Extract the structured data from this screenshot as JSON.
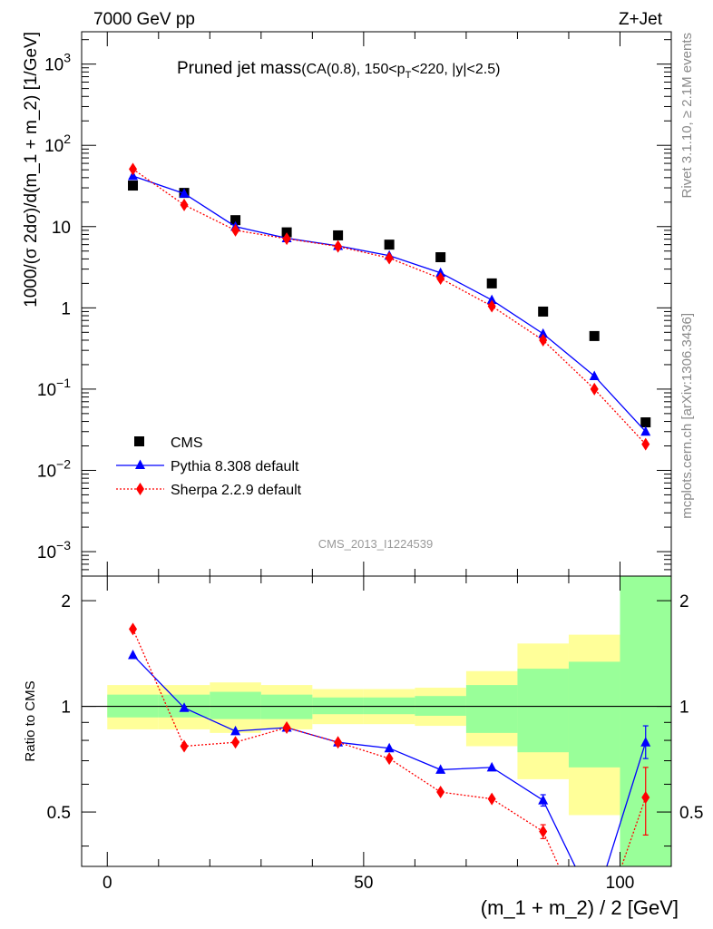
{
  "header": {
    "left": "7000 GeV pp",
    "right": "Z+Jet"
  },
  "side_labels": {
    "rivet": "Rivet 3.1.10, ≥ 2.1M events",
    "mcplots": "mcplots.cern.ch [arXiv:1306.3436]"
  },
  "watermark": "CMS_2013_I1224539",
  "chart_data": [
    {
      "type": "scatter",
      "title_main": "Pruned jet mass",
      "title_cuts_prefix": "(CA(0.8), 150<p",
      "title_cuts_sub": "T",
      "title_cuts_suffix": "<220, |y|<2.5)",
      "ylabel": "1000/(σ 2dσ)/d(m_1 + m_2) [1/GeV]",
      "yscale": "log",
      "ylim": [
        0.0005,
        2500
      ],
      "xlim": [
        -5,
        110
      ],
      "yticks": [
        {
          "base": "10",
          "exp": "−3",
          "value": 0.001
        },
        {
          "base": "10",
          "exp": "−2",
          "value": 0.01
        },
        {
          "base": "10",
          "exp": "−1",
          "value": 0.1
        },
        {
          "base": "1",
          "exp": "",
          "value": 1
        },
        {
          "base": "10",
          "exp": "",
          "value": 10
        },
        {
          "base": "10",
          "exp": "2",
          "value": 100
        },
        {
          "base": "10",
          "exp": "3",
          "value": 1000
        }
      ],
      "legend_position": "bottom-left",
      "x": [
        5,
        15,
        25,
        35,
        45,
        55,
        65,
        75,
        85,
        95,
        105
      ],
      "series": [
        {
          "name": "CMS",
          "color": "#000000",
          "marker": "square",
          "line": "none",
          "values": [
            32,
            26,
            12,
            8.5,
            7.8,
            6.0,
            4.2,
            2.0,
            0.9,
            0.45,
            0.039
          ]
        },
        {
          "name": "Pythia 8.308 default",
          "color": "#0000ff",
          "marker": "triangle",
          "line": "solid",
          "values": [
            42,
            25.5,
            10,
            7.2,
            5.8,
            4.4,
            2.7,
            1.25,
            0.48,
            0.145,
            0.03
          ]
        },
        {
          "name": "Sherpa 2.2.9 default",
          "color": "#ff0000",
          "marker": "diamond",
          "line": "dotted",
          "values": [
            51,
            18.5,
            9,
            7.1,
            5.7,
            4.1,
            2.3,
            1.05,
            0.4,
            0.1,
            0.021
          ]
        }
      ]
    },
    {
      "type": "line",
      "xlabel": "(m_1 + m_2) / 2 [GeV]",
      "ylabel": "Ratio to CMS",
      "ylim": [
        0.35,
        2.35
      ],
      "xlim": [
        -5,
        110
      ],
      "xticks": [
        {
          "label": "0",
          "value": 0
        },
        {
          "label": "50",
          "value": 50
        },
        {
          "label": "100",
          "value": 100
        }
      ],
      "yticks": [
        {
          "label": "0.5",
          "value": 0.5
        },
        {
          "label": "1",
          "value": 1
        },
        {
          "label": "2",
          "value": 2
        }
      ],
      "reference_line": 1,
      "bin_edges": [
        0,
        10,
        20,
        30,
        40,
        50,
        60,
        70,
        80,
        90,
        100,
        110
      ],
      "band_stat": {
        "color": "#99ff99",
        "lo": [
          0.93,
          0.93,
          0.92,
          0.92,
          0.95,
          0.95,
          0.94,
          0.84,
          0.74,
          0.67,
          0.35
        ],
        "hi": [
          1.08,
          1.08,
          1.1,
          1.08,
          1.06,
          1.06,
          1.07,
          1.15,
          1.28,
          1.34,
          2.35
        ]
      },
      "band_total": {
        "color": "#ffff99",
        "lo": [
          0.86,
          0.86,
          0.84,
          0.86,
          0.89,
          0.89,
          0.88,
          0.77,
          0.62,
          0.49,
          0.35
        ],
        "hi": [
          1.15,
          1.15,
          1.17,
          1.15,
          1.12,
          1.12,
          1.13,
          1.26,
          1.51,
          1.6,
          2.35
        ]
      },
      "x": [
        5,
        15,
        25,
        35,
        45,
        55,
        65,
        75,
        85,
        95,
        105
      ],
      "series": [
        {
          "name": "Pythia 8.308 default",
          "color": "#0000ff",
          "marker": "triangle",
          "line": "solid",
          "values": [
            1.4,
            0.99,
            0.85,
            0.87,
            0.79,
            0.76,
            0.66,
            0.67,
            0.54,
            0.27,
            0.79
          ],
          "err_hi": [
            null,
            null,
            null,
            null,
            null,
            null,
            null,
            null,
            0.02,
            null,
            0.09
          ],
          "err_lo": [
            null,
            null,
            null,
            null,
            null,
            null,
            null,
            null,
            0.02,
            null,
            0.08
          ]
        },
        {
          "name": "Sherpa 2.2.9 default",
          "color": "#ff0000",
          "marker": "diamond",
          "line": "dotted",
          "values": [
            1.66,
            0.77,
            0.79,
            0.87,
            0.79,
            0.71,
            0.57,
            0.545,
            0.44,
            0.21,
            0.55
          ],
          "err_hi": [
            null,
            null,
            null,
            null,
            null,
            null,
            null,
            null,
            0.02,
            null,
            0.12
          ],
          "err_lo": [
            null,
            null,
            null,
            null,
            null,
            null,
            null,
            null,
            0.02,
            null,
            0.12
          ]
        }
      ]
    }
  ]
}
